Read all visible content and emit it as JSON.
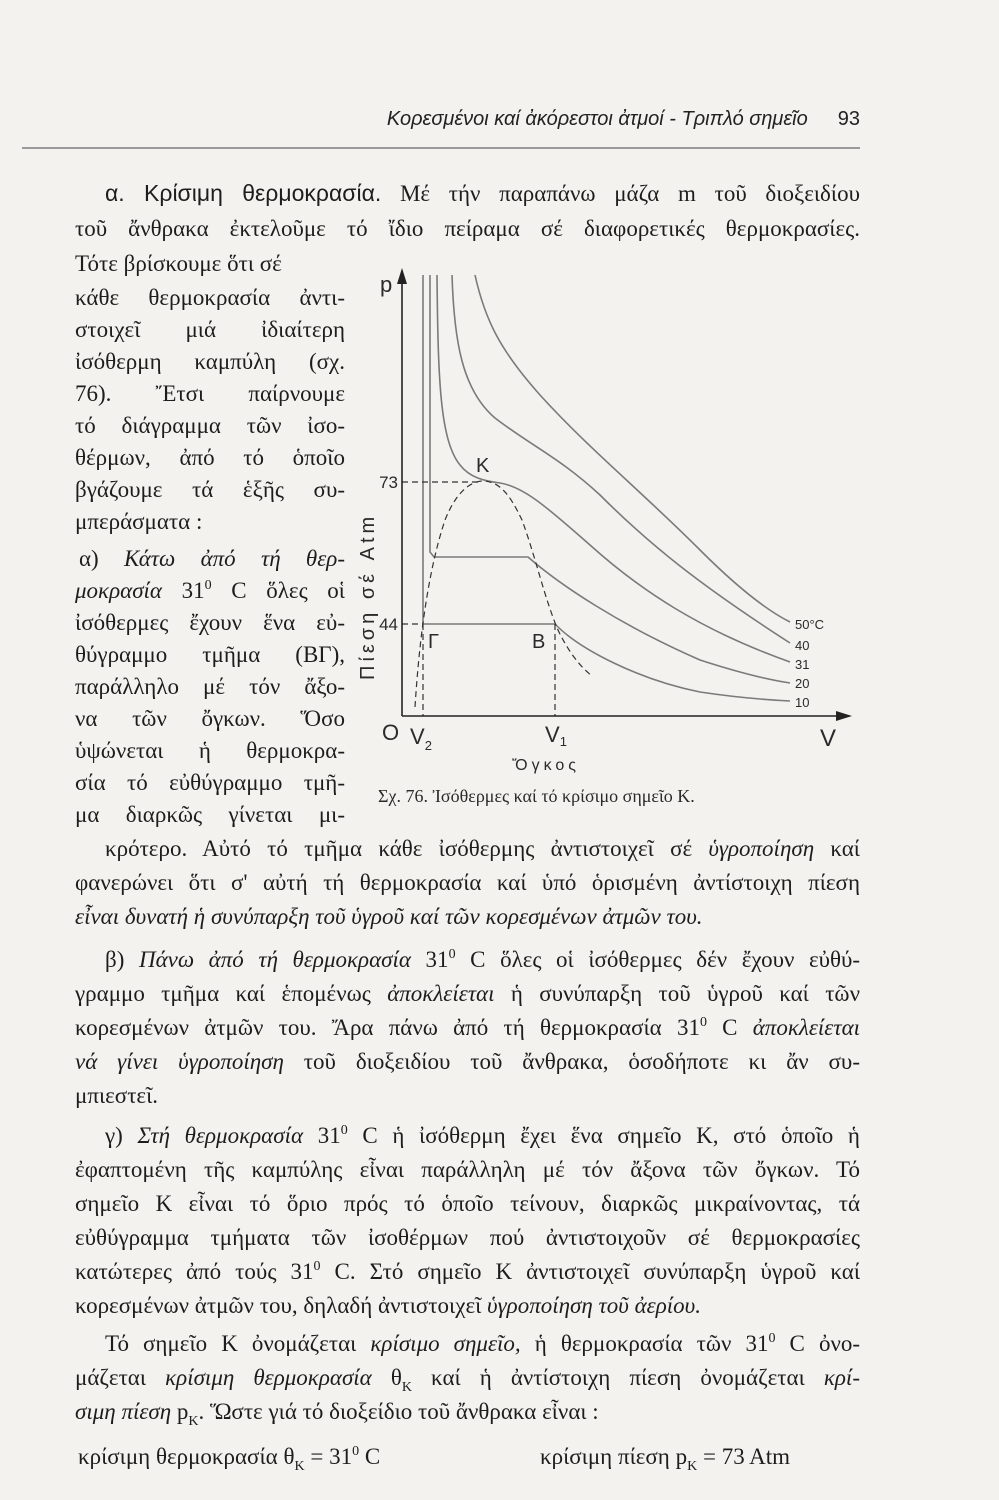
{
  "header": {
    "running_title": "Κορεσμένοι καί ἀκόρεστοι ἀτμοί - Τριπλό σημεῖο",
    "page_number": "93"
  },
  "intro": {
    "paragraphs": [
      [
        [
          {
            "t": "α. Κρίσιμη θερμοκρασία.",
            "f": "h"
          },
          {
            "t": " Μέ τήν παραπάνω μάζα m τοῦ διοξειδίου"
          }
        ],
        "τοῦ ἄνθρακα ἐκτελοῦμε τό ἴδιο πείραμα σέ διαφορετικές θερμοκρασίες.",
        "Τότε βρίσκουμε ὅτι σέ"
      ]
    ]
  },
  "column": {
    "paragraphs": [
      [
        "κάθε θερμοκρασία ἀντι-",
        "στοιχεῖ μιά ἰδιαίτερη",
        "ἰσόθερμη καμπύλη (σχ.",
        "76). Ἔτσι παίρνουμε",
        "τό διάγραμμα τῶν ἰσο-",
        "θέρμων, ἀπό τό ὁποῖο",
        "βγάζουμε τά ἑξῆς συ-",
        "μπεράσματα :"
      ],
      [
        [
          {
            "t": "α) "
          },
          {
            "t": "Κάτω ἀπό τή θερ-",
            "f": "i"
          }
        ],
        [
          {
            "t": "μοκρασία",
            "f": "i"
          },
          {
            "t": " 31"
          },
          {
            "t": "0",
            "f": "sup"
          },
          {
            "t": " C ὅλες οἱ"
          }
        ],
        "ἰσόθερμες ἔχουν ἕνα εὐ-",
        "θύγραμμο τμῆμα (ΒΓ),",
        "παράλληλο μέ τόν ἄξο-",
        "να τῶν ὄγκων. Ὅσο",
        "ὑψώνεται ἡ θερμοκρα-",
        "σία τό εὐθύγραμμο τμῆ-",
        "μα διαρκῶς γίνεται μι-"
      ]
    ]
  },
  "body": {
    "paragraphs": [
      [
        [
          {
            "t": "κρότερο. Αὐτό τό τμῆμα κάθε ἰσόθερμης ἀντιστοιχεῖ σέ "
          },
          {
            "t": "ὑγροποίηση",
            "f": "i"
          },
          {
            "t": " καί"
          }
        ],
        "φανερώνει ὅτι σ' αὐτή τή θερμοκρασία καί ὑπό ὁρισμένη ἀντίστοιχη πίεση",
        [
          {
            "t": "εἶναι δυνατή ἡ συνύπαρξη τοῦ ὑγροῦ καί τῶν κορεσμένων ἀτμῶν του.",
            "f": "i"
          }
        ]
      ],
      [
        [
          {
            "t": "β) "
          },
          {
            "t": "Πάνω ἀπό τή θερμοκρασία",
            "f": "i"
          },
          {
            "t": " 31"
          },
          {
            "t": "0",
            "f": "sup"
          },
          {
            "t": " C ὅλες οἱ ἰσόθερμες δέν ἔχουν εὐθύ-"
          }
        ],
        [
          {
            "t": "γραμμο τμῆμα καί ἑπομένως "
          },
          {
            "t": "ἀποκλείεται",
            "f": "i"
          },
          {
            "t": " ἡ συνύπαρξη τοῦ ὑγροῦ καί τῶν"
          }
        ],
        [
          {
            "t": "κορεσμένων ἀτμῶν του. Ἄρα πάνω ἀπό τή θερμοκρασία 31"
          },
          {
            "t": "0",
            "f": "sup"
          },
          {
            "t": " C "
          },
          {
            "t": "ἀποκλείεται",
            "f": "i"
          }
        ],
        [
          {
            "t": "νά γίνει ὑγροποίηση",
            "f": "i"
          },
          {
            "t": " τοῦ διοξειδίου τοῦ ἄνθρακα, ὁσοδήποτε κι ἄν συ-"
          }
        ],
        "μπιεστεῖ."
      ],
      [
        [
          {
            "t": "γ) "
          },
          {
            "t": "Στή θερμοκρασία",
            "f": "i"
          },
          {
            "t": " 31"
          },
          {
            "t": "0",
            "f": "sup"
          },
          {
            "t": " C ἡ ἰσόθερμη ἔχει ἕνα σημεῖο Κ, στό ὁποῖο ἡ"
          }
        ],
        "ἐφαπτομένη τῆς καμπύλης εἶναι παράλληλη μέ τόν ἄξονα τῶν ὄγκων. Τό",
        "σημεῖο Κ εἶναι τό ὅριο πρός τό ὁποῖο τείνουν, διαρκῶς μικραίνοντας, τά",
        "εὐθύγραμμα τμήματα τῶν ἰσοθέρμων πού ἀντιστοιχοῦν σέ θερμοκρασίες",
        [
          {
            "t": "κατώτερες ἀπό τούς 31"
          },
          {
            "t": "0",
            "f": "sup"
          },
          {
            "t": " C. Στό σημεῖο Κ ἀντιστοιχεῖ συνύπαρξη ὑγροῦ καί"
          }
        ],
        [
          {
            "t": "κορεσμένων ἀτμῶν του, δηλαδή ἀντιστοιχεῖ "
          },
          {
            "t": "ὑγροποίηση τοῦ ἀερίου.",
            "f": "i"
          }
        ]
      ],
      [
        [
          {
            "t": "Τό σημεῖο Κ ὀνομάζεται "
          },
          {
            "t": "κρίσιμο σημεῖο,",
            "f": "i"
          },
          {
            "t": " ἡ θερμοκρασία τῶν 31"
          },
          {
            "t": "0",
            "f": "sup"
          },
          {
            "t": " C ὀνο-"
          }
        ],
        [
          {
            "t": "μάζεται "
          },
          {
            "t": "κρίσιμη θερμοκρασία",
            "f": "i"
          },
          {
            "t": " θ"
          },
          {
            "t": "K",
            "f": "sub"
          },
          {
            "t": " καί ἡ ἀντίστοιχη πίεση ὀνομάζεται "
          },
          {
            "t": "κρί-",
            "f": "i"
          }
        ],
        [
          {
            "t": "σιμη πίεση",
            "f": "i"
          },
          {
            "t": " p"
          },
          {
            "t": "K",
            "f": "sub"
          },
          {
            "t": ". Ὥστε γιά τό διοξείδιο τοῦ ἄνθρακα εἶναι :"
          }
        ]
      ]
    ]
  },
  "formula": {
    "critical_temperature": [
      {
        "t": "κρίσιμη θερμοκρασία  θ"
      },
      {
        "t": "K",
        "f": "sub"
      },
      {
        "t": " = 31"
      },
      {
        "t": "0",
        "f": "sup"
      },
      {
        "t": " C"
      }
    ],
    "critical_pressure": [
      {
        "t": "κρίσιμη πίεση  p"
      },
      {
        "t": "K",
        "f": "sub"
      },
      {
        "t": " = 73  Atm"
      }
    ]
  },
  "figure": {
    "y_axis_symbol": "p",
    "x_axis_symbol": "V",
    "origin": "O",
    "y_axis_title": "Πίεση σέ Atm",
    "x_axis_title": "Ὄγκος",
    "y_ticks": [
      "73",
      "44"
    ],
    "v2": {
      "base": "V",
      "sub": "2"
    },
    "v1": {
      "base": "V",
      "sub": "1"
    },
    "point_k": "K",
    "point_gamma": "Γ",
    "point_b": "B",
    "isotherm_labels": [
      "50°C",
      "40",
      "31",
      "20",
      "10"
    ],
    "caption": "Σχ. 76. Ἰσόθερμες καί τό κρίσιμο σημεῖο Κ.",
    "curve_color": "#7a7a7a"
  }
}
